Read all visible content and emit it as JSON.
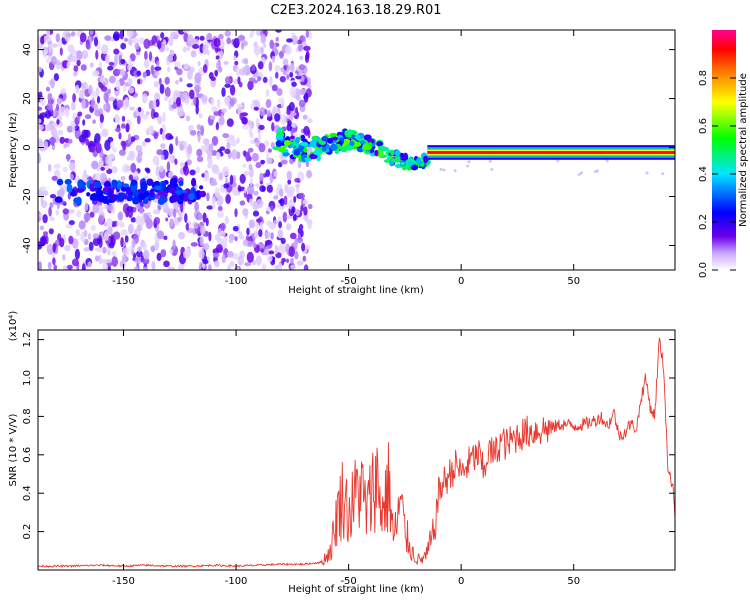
{
  "page": {
    "title": "C2E3.2024.163.18.29.R01"
  },
  "chart_data": [
    {
      "type": "heatmap",
      "title": "C2E3.2024.163.18.29.R01",
      "xlabel": "Height of straight line (km)",
      "ylabel": "Frequency (Hz)",
      "xlim": [
        -188,
        95
      ],
      "ylim": [
        -50,
        48
      ],
      "xticks": [
        -150,
        -100,
        -50,
        0,
        50
      ],
      "xtick_labels": [
        "-150",
        "-100",
        "-50",
        "0",
        "50"
      ],
      "yticks": [
        -40,
        -20,
        0,
        20,
        40
      ],
      "ytick_labels": [
        "-40",
        "-20",
        "0",
        "20",
        "40"
      ],
      "colorbar": {
        "label": "Normalized spectral amplitude",
        "range": [
          0,
          1
        ],
        "ticks": [
          0.0,
          0.2,
          0.4,
          0.6,
          0.8
        ],
        "tick_labels": [
          "0.0",
          "0.2",
          "0.4",
          "0.6",
          "0.8"
        ]
      },
      "features": {
        "noise_region_x": [
          -188,
          -67
        ],
        "noise_amplitude": 0.3,
        "band_frequency_hz": -18,
        "band_x": [
          -170,
          -120
        ],
        "signal_line_frequency_hz": -2,
        "signal_line_x": [
          -15,
          95
        ],
        "signal_line_amplitude": 1.0,
        "transition_x": [
          -82,
          -15
        ]
      },
      "grid": false
    },
    {
      "type": "line",
      "xlabel": "Height of straight line (km)",
      "ylabel": "SNR (10 * V/V)",
      "y_multiplier": "(x10⁴)",
      "xlim": [
        -188,
        95
      ],
      "ylim": [
        0,
        1.25
      ],
      "xticks": [
        -150,
        -100,
        -50,
        0,
        50
      ],
      "xtick_labels": [
        "-150",
        "-100",
        "-50",
        "0",
        "50"
      ],
      "yticks": [
        0.2,
        0.4,
        0.6,
        0.8,
        1.0,
        1.2
      ],
      "ytick_labels": [
        "0.2",
        "0.4",
        "0.6",
        "0.8",
        "1.0",
        "1.2"
      ],
      "color": "#e8392f",
      "grid": false,
      "series": [
        {
          "x": [
            -188,
            -175,
            -160,
            -150,
            -140,
            -130,
            -120,
            -110,
            -100,
            -90,
            -80,
            -70,
            -62,
            -58,
            -55,
            -52,
            -50,
            -48,
            -45,
            -42,
            -40,
            -38,
            -35,
            -32,
            -30,
            -27,
            -25,
            -22,
            -20,
            -18,
            -15,
            -12,
            -10,
            -8,
            -5,
            -2,
            0,
            3,
            5,
            8,
            10,
            12,
            15,
            18,
            20,
            25,
            30,
            35,
            40,
            45,
            50,
            55,
            60,
            62,
            65,
            68,
            70,
            73,
            75,
            78,
            80,
            82,
            84,
            86,
            88,
            90,
            92,
            94,
            95
          ],
          "y": [
            0.02,
            0.02,
            0.025,
            0.02,
            0.025,
            0.02,
            0.02,
            0.025,
            0.02,
            0.025,
            0.03,
            0.03,
            0.04,
            0.1,
            0.3,
            0.4,
            0.28,
            0.35,
            0.45,
            0.3,
            0.38,
            0.5,
            0.3,
            0.45,
            0.15,
            0.35,
            0.2,
            0.1,
            0.06,
            0.05,
            0.08,
            0.2,
            0.4,
            0.45,
            0.5,
            0.55,
            0.5,
            0.55,
            0.58,
            0.6,
            0.5,
            0.62,
            0.6,
            0.68,
            0.65,
            0.7,
            0.72,
            0.73,
            0.74,
            0.76,
            0.75,
            0.76,
            0.78,
            0.8,
            0.75,
            0.82,
            0.7,
            0.72,
            0.76,
            0.74,
            0.9,
            1.0,
            0.85,
            0.8,
            1.2,
            1.05,
            0.5,
            0.45,
            0.3
          ]
        }
      ]
    }
  ]
}
